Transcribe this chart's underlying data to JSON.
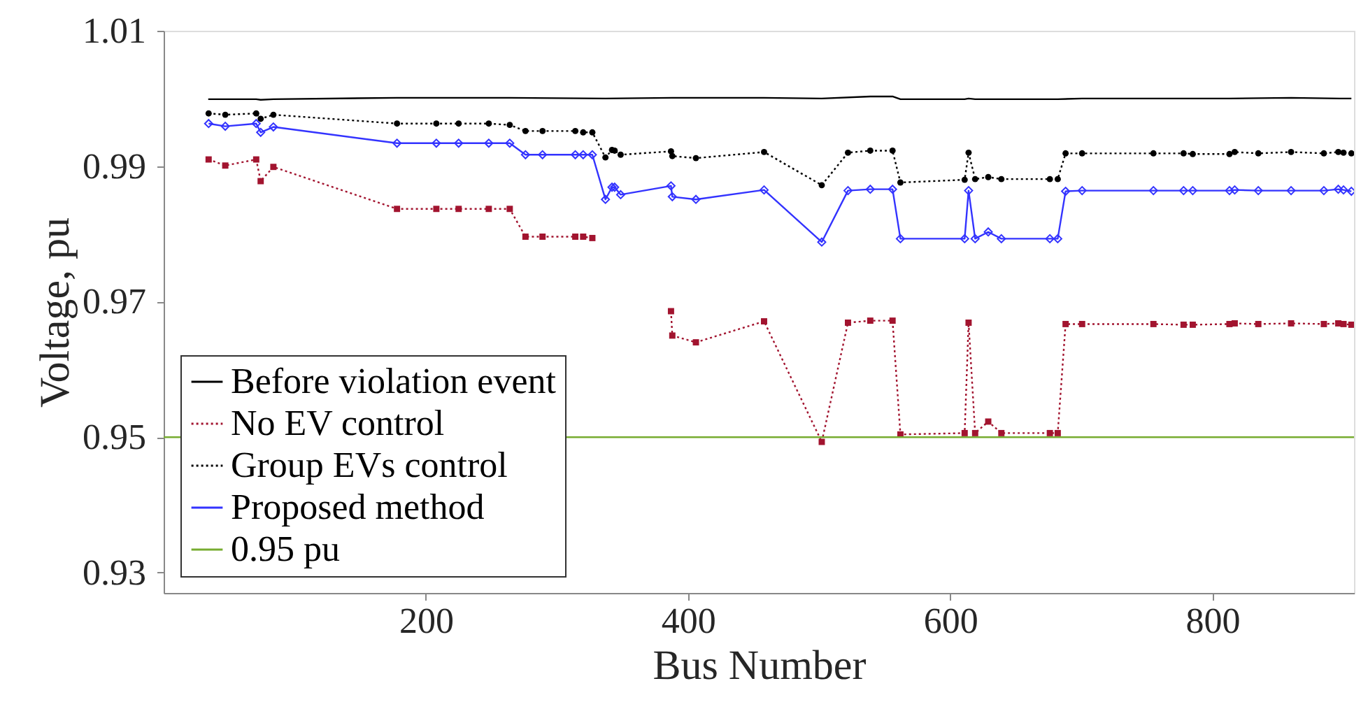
{
  "chart_data": {
    "type": "line",
    "xlabel": "Bus Number",
    "ylabel": "Voltage, pu",
    "xlim": [
      0,
      908
    ],
    "xticks": [
      200,
      400,
      600,
      800
    ],
    "ylim": [
      0.927,
      1.01
    ],
    "yticks": [
      0.93,
      0.95,
      0.97,
      0.99,
      1.01
    ],
    "grid": false,
    "legend": "bottom left",
    "series": [
      {
        "name": "Before violation event",
        "color": "#000000",
        "marker": "none",
        "line_style": "solid",
        "x": [
          34,
          47,
          70.6,
          74,
          83.7,
          178,
          264,
          337,
          388,
          458,
          502,
          539,
          556,
          562,
          611,
          614,
          619,
          682,
          700.6,
          755,
          778,
          813,
          860,
          897,
          906
        ],
        "values": [
          0.9999,
          0.9999,
          0.9999,
          0.9998,
          0.9999,
          1.0001,
          1.0001,
          1.0,
          1.0001,
          1.0001,
          1.0,
          1.0003,
          1.0003,
          0.9999,
          0.9999,
          1.0,
          0.9999,
          0.9999,
          1.0,
          1.0,
          1.0,
          1.0,
          1.0001,
          1.0,
          1.0
        ]
      },
      {
        "name": "No EV control",
        "color": "#a2142f",
        "marker": "square",
        "line_style": "dotted",
        "x": [
          34.3,
          47,
          70.6,
          74,
          83.7,
          178,
          208,
          225,
          248,
          264,
          276,
          289,
          314,
          320,
          327,
          337,
          342,
          344,
          348.6,
          387,
          388,
          406,
          458,
          502,
          522,
          539,
          556,
          562,
          611,
          614,
          619,
          629,
          639,
          676,
          682,
          688,
          700.6,
          755,
          778,
          785,
          813,
          817,
          835,
          860,
          885,
          896,
          900,
          906
        ],
        "values": [
          0.991,
          0.9901,
          0.991,
          0.9878,
          0.9899,
          0.9837,
          0.9837,
          0.9837,
          0.9837,
          0.9837,
          0.9796,
          0.9796,
          0.9796,
          0.9796,
          0.9794,
          null,
          null,
          null,
          null,
          0.9686,
          0.965,
          0.964,
          0.9671,
          0.9493,
          0.9669,
          0.9672,
          0.9672,
          0.9504,
          0.9506,
          0.9669,
          0.9506,
          0.9523,
          0.9506,
          0.9506,
          0.9506,
          0.9667,
          0.9667,
          0.9667,
          0.9666,
          0.9666,
          0.9667,
          0.9668,
          0.9667,
          0.9668,
          0.9667,
          0.9668,
          0.9667,
          0.9666
        ]
      },
      {
        "name": "Group EVs control",
        "color": "#000000",
        "marker": "circle",
        "line_style": "dotted",
        "x": [
          34.3,
          47,
          70.6,
          74,
          83.7,
          178,
          208,
          225,
          248,
          264,
          276,
          289,
          314,
          320,
          327,
          337,
          342,
          344,
          348.6,
          387,
          388,
          406,
          458,
          502,
          522,
          539,
          556,
          562,
          611,
          614,
          619,
          629,
          639,
          676,
          682,
          688,
          700.6,
          755,
          778,
          785,
          813,
          817,
          835,
          860,
          885,
          896,
          900,
          906
        ],
        "values": [
          0.9978,
          0.9976,
          0.9978,
          0.997,
          0.9976,
          0.9963,
          0.9963,
          0.9963,
          0.9963,
          0.9961,
          0.9952,
          0.9952,
          0.9952,
          0.995,
          0.995,
          0.9913,
          0.9924,
          0.9923,
          0.9917,
          0.9922,
          0.9915,
          0.9912,
          0.9921,
          0.9872,
          0.992,
          0.9923,
          0.9923,
          0.9876,
          0.988,
          0.992,
          0.9881,
          0.9884,
          0.9881,
          0.9881,
          0.9881,
          0.9919,
          0.9919,
          0.9919,
          0.9919,
          0.9918,
          0.9918,
          0.9921,
          0.9919,
          0.9921,
          0.9919,
          0.9921,
          0.992,
          0.9919
        ]
      },
      {
        "name": "Proposed method",
        "color": "#3333ff",
        "marker": "diamond",
        "line_style": "solid",
        "x": [
          34.3,
          47,
          70.6,
          74,
          83.7,
          178,
          208,
          225,
          248,
          264,
          276,
          289,
          314,
          320,
          327,
          337,
          342,
          344,
          348.6,
          387,
          388,
          406,
          458,
          502,
          522,
          539,
          556,
          562,
          611,
          614,
          619,
          629,
          639,
          676,
          682,
          688,
          700.6,
          755,
          778,
          785,
          813,
          817,
          835,
          860,
          885,
          896,
          900,
          906
        ],
        "values": [
          0.9963,
          0.9959,
          0.9963,
          0.995,
          0.9958,
          0.9934,
          0.9934,
          0.9934,
          0.9934,
          0.9934,
          0.9917,
          0.9917,
          0.9917,
          0.9917,
          0.9917,
          0.9851,
          0.9869,
          0.9869,
          0.9858,
          0.9871,
          0.9855,
          0.9851,
          0.9865,
          0.9788,
          0.9864,
          0.9866,
          0.9866,
          0.9793,
          0.9793,
          0.9864,
          0.9793,
          0.9803,
          0.9793,
          0.9793,
          0.9793,
          0.9863,
          0.9864,
          0.9864,
          0.9864,
          0.9864,
          0.9864,
          0.9865,
          0.9864,
          0.9864,
          0.9864,
          0.9866,
          0.9865,
          0.9863
        ]
      }
    ],
    "ref_lines": [
      {
        "axis": "y",
        "value": 0.95,
        "label": "0.95 pu",
        "color": "#77ac30",
        "line_style": "solid"
      }
    ]
  }
}
